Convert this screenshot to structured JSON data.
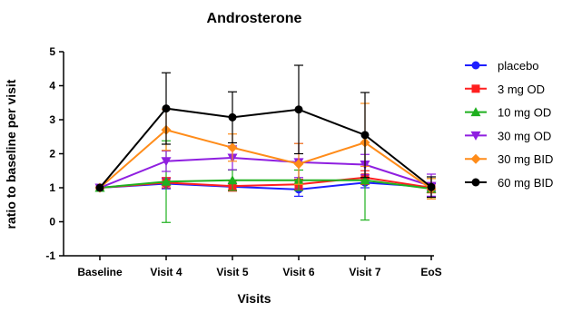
{
  "chart_data": {
    "type": "line",
    "title": "Androsterone",
    "xlabel": "Visits",
    "ylabel": "ratio to baseline per visit",
    "categories": [
      "Baseline",
      "Visit 4",
      "Visit 5",
      "Visit 6",
      "Visit 7",
      "EoS"
    ],
    "ylim": [
      -1,
      5
    ],
    "yticks": [
      -1,
      0,
      1,
      2,
      3,
      4,
      5
    ],
    "grid": false,
    "legend_position": "right",
    "series": [
      {
        "name": "placebo",
        "color": "#1f1fff",
        "marker": "circle",
        "values": [
          1.0,
          1.12,
          1.03,
          0.95,
          1.15,
          1.02
        ],
        "err_low": [
          0,
          0.15,
          0.1,
          0.2,
          0.15,
          0.1
        ],
        "err_high": [
          0,
          0.15,
          0.1,
          0.15,
          0.15,
          0.1
        ]
      },
      {
        "name": "3 mg OD",
        "color": "#ff1f1f",
        "marker": "square",
        "values": [
          1.0,
          1.15,
          1.05,
          1.1,
          1.3,
          1.0
        ],
        "err_low": [
          0,
          0.15,
          0.15,
          0.15,
          0.2,
          0.15
        ],
        "err_high": [
          0,
          0.15,
          0.15,
          0.15,
          0.2,
          0.15
        ]
      },
      {
        "name": "10 mg OD",
        "color": "#1fb01f",
        "marker": "triangle",
        "values": [
          1.0,
          1.18,
          1.22,
          1.22,
          1.22,
          0.97
        ],
        "err_low": [
          0,
          1.2,
          0.3,
          0.3,
          1.17,
          0.3
        ],
        "err_high": [
          0,
          1.2,
          0.3,
          0.3,
          1.1,
          0.3
        ]
      },
      {
        "name": "30 mg OD",
        "color": "#8f1fe0",
        "marker": "triangle-down",
        "values": [
          1.0,
          1.78,
          1.88,
          1.75,
          1.68,
          1.05
        ],
        "err_low": [
          0,
          0.3,
          0.35,
          0.45,
          0.3,
          0.3
        ],
        "err_high": [
          0,
          0.3,
          0.35,
          0.55,
          0.3,
          0.35
        ]
      },
      {
        "name": "30 mg BID",
        "color": "#ff8c1a",
        "marker": "diamond",
        "values": [
          1.0,
          2.7,
          2.18,
          1.7,
          2.33,
          0.97
        ],
        "err_low": [
          0,
          0.6,
          0.4,
          0.6,
          0.7,
          0.3
        ],
        "err_high": [
          0,
          0.6,
          0.4,
          0.6,
          1.15,
          0.3
        ]
      },
      {
        "name": "60 mg BID",
        "color": "#000000",
        "marker": "circle",
        "values": [
          1.0,
          3.33,
          3.07,
          3.3,
          2.55,
          1.02
        ],
        "err_low": [
          0,
          1.05,
          0.75,
          1.3,
          1.25,
          0.3
        ],
        "err_high": [
          0,
          1.05,
          0.75,
          1.3,
          1.25,
          0.3
        ]
      }
    ]
  }
}
